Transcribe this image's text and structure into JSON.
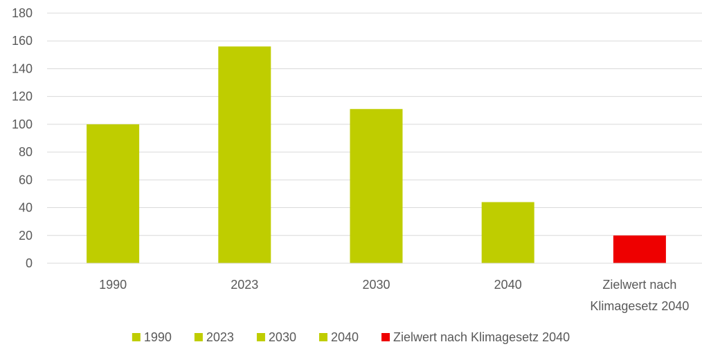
{
  "chart_data": {
    "type": "bar",
    "categories": [
      "1990",
      "2023",
      "2030",
      "2040",
      "Zielwert nach Klimagesetz 2040"
    ],
    "category_label_lines": [
      [
        "1990"
      ],
      [
        "2023"
      ],
      [
        "2030"
      ],
      [
        "2040"
      ],
      [
        "Zielwert nach",
        "Klimagesetz 2040"
      ]
    ],
    "values": [
      100,
      156,
      111,
      44,
      20
    ],
    "bar_colors": [
      "#bfcd00",
      "#bfcd00",
      "#bfcd00",
      "#bfcd00",
      "#ee0000"
    ],
    "title": "",
    "xlabel": "",
    "ylabel": "",
    "ylim": [
      0,
      180
    ],
    "yticks": [
      0,
      20,
      40,
      60,
      80,
      100,
      120,
      140,
      160,
      180
    ],
    "grid": true,
    "legend_position": "bottom",
    "legend": [
      {
        "label": "1990",
        "color": "#bfcd00"
      },
      {
        "label": "2023",
        "color": "#bfcd00"
      },
      {
        "label": "2030",
        "color": "#bfcd00"
      },
      {
        "label": "2040",
        "color": "#bfcd00"
      },
      {
        "label": "Zielwert nach Klimagesetz 2040",
        "color": "#ee0000"
      }
    ]
  },
  "colors": {
    "gridline": "#d9d9d9",
    "axis": "#d9d9d9",
    "text": "#595959"
  }
}
